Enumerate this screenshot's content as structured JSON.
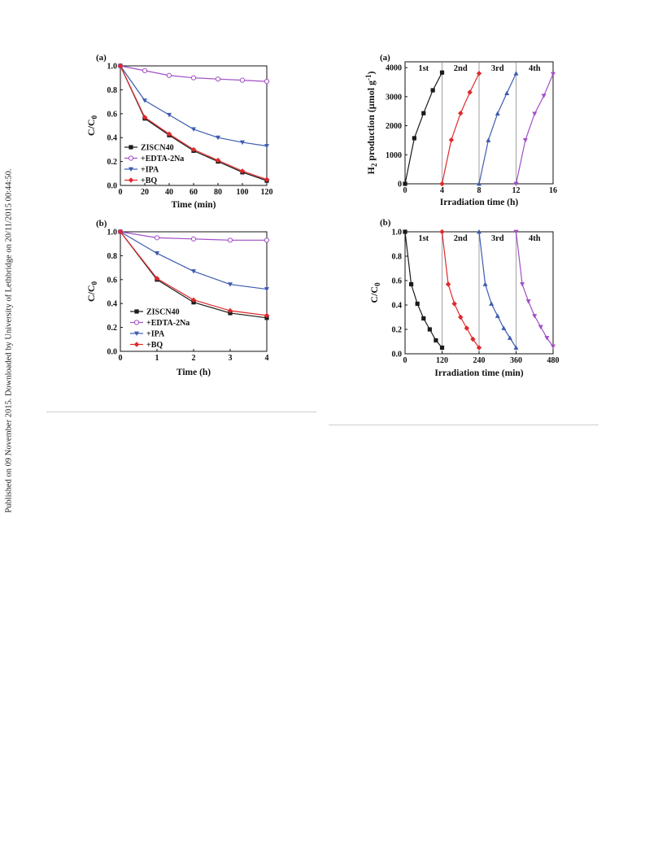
{
  "side_note": "Published on 09 November 2015. Downloaded by University of Lethbridge on 20/11/2015 00:44:50.",
  "chart_data": [
    {
      "id": "fig_left_a",
      "type": "line",
      "panel_label": "(a)",
      "xlabel": "Time (min)",
      "ylabel": "C/C0",
      "xlim": [
        0,
        120
      ],
      "ylim": [
        0,
        1.0
      ],
      "xticks": [
        0,
        20,
        40,
        60,
        80,
        100,
        120
      ],
      "yticks": [
        0.0,
        0.2,
        0.4,
        0.6,
        0.8,
        1.0
      ],
      "grid": false,
      "legend": "bottom-left",
      "x": [
        0,
        20,
        40,
        60,
        80,
        100,
        120
      ],
      "series": [
        {
          "name": "ZISCN40",
          "color": "#1a1a1a",
          "marker": "square",
          "values": [
            1.0,
            0.56,
            0.42,
            0.29,
            0.2,
            0.11,
            0.04
          ]
        },
        {
          "name": "+EDTA-2Na",
          "color": "#a14fc4",
          "marker": "circle-open",
          "values": [
            1.0,
            0.96,
            0.92,
            0.9,
            0.89,
            0.88,
            0.87
          ]
        },
        {
          "name": "+IPA",
          "color": "#3e5bb0",
          "marker": "triangle-down",
          "values": [
            1.0,
            0.71,
            0.59,
            0.47,
            0.4,
            0.36,
            0.33
          ]
        },
        {
          "name": "+BQ",
          "color": "#e0292b",
          "marker": "diamond",
          "values": [
            1.0,
            0.57,
            0.43,
            0.3,
            0.21,
            0.12,
            0.05
          ]
        }
      ]
    },
    {
      "id": "fig_left_b",
      "type": "line",
      "panel_label": "(b)",
      "xlabel": "Time (h)",
      "ylabel": "C/C0",
      "xlim": [
        0,
        4
      ],
      "ylim": [
        0,
        1.0
      ],
      "xticks": [
        0,
        1,
        2,
        3,
        4
      ],
      "yticks": [
        0.0,
        0.2,
        0.4,
        0.6,
        0.8,
        1.0
      ],
      "grid": false,
      "legend": "bottom-left",
      "x": [
        0,
        1,
        2,
        3,
        4
      ],
      "series": [
        {
          "name": "ZISCN40",
          "color": "#1a1a1a",
          "marker": "square",
          "values": [
            1.0,
            0.6,
            0.41,
            0.32,
            0.28
          ]
        },
        {
          "name": "+EDTA-2Na",
          "color": "#a14fc4",
          "marker": "circle-open",
          "values": [
            1.0,
            0.95,
            0.94,
            0.93,
            0.93
          ]
        },
        {
          "name": "+IPA",
          "color": "#3e5bb0",
          "marker": "triangle-down",
          "values": [
            1.0,
            0.82,
            0.67,
            0.56,
            0.52
          ]
        },
        {
          "name": "+BQ",
          "color": "#e0292b",
          "marker": "diamond",
          "values": [
            1.0,
            0.61,
            0.43,
            0.34,
            0.3
          ]
        }
      ]
    },
    {
      "id": "fig_right_a",
      "type": "line",
      "panel_label": "(a)",
      "xlabel": "Irradiation time (h)",
      "ylabel": "H2 production (µmol g-1)",
      "xlim": [
        0,
        16
      ],
      "ylim": [
        0,
        4200
      ],
      "xticks": [
        0,
        4,
        8,
        12,
        16
      ],
      "yticks": [
        0,
        1000,
        2000,
        3000,
        4000
      ],
      "grid": false,
      "cycle_dividers": [
        4,
        8,
        12
      ],
      "cycle_labels": [
        {
          "text": "1st",
          "x": 2
        },
        {
          "text": "2nd",
          "x": 6
        },
        {
          "text": "3rd",
          "x": 10
        },
        {
          "text": "4th",
          "x": 14
        }
      ],
      "series": [
        {
          "name": "1st",
          "color": "#1a1a1a",
          "marker": "square",
          "x": [
            0,
            1,
            2,
            3,
            4
          ],
          "values": [
            0,
            1570,
            2430,
            3220,
            3830
          ]
        },
        {
          "name": "2nd",
          "color": "#e0292b",
          "marker": "diamond",
          "x": [
            4,
            5,
            6,
            7,
            8
          ],
          "values": [
            0,
            1510,
            2430,
            3150,
            3800
          ]
        },
        {
          "name": "3rd",
          "color": "#3e5bb0",
          "marker": "triangle-up",
          "x": [
            8,
            9,
            10,
            11,
            12
          ],
          "values": [
            0,
            1500,
            2420,
            3120,
            3800
          ]
        },
        {
          "name": "4th",
          "color": "#a14fc4",
          "marker": "triangle-down",
          "x": [
            12,
            13,
            14,
            15,
            16
          ],
          "values": [
            0,
            1500,
            2410,
            3030,
            3780
          ]
        }
      ]
    },
    {
      "id": "fig_right_b",
      "type": "line",
      "panel_label": "(b)",
      "xlabel": "Irradiation time (min)",
      "ylabel": "C/C0",
      "xlim": [
        0,
        480
      ],
      "ylim": [
        0,
        1.0
      ],
      "xticks": [
        0,
        120,
        240,
        360,
        480
      ],
      "yticks": [
        0.0,
        0.2,
        0.4,
        0.6,
        0.8,
        1.0
      ],
      "grid": false,
      "cycle_dividers": [
        120,
        240,
        360
      ],
      "cycle_labels": [
        {
          "text": "1st",
          "x": 60
        },
        {
          "text": "2nd",
          "x": 180
        },
        {
          "text": "3rd",
          "x": 300
        },
        {
          "text": "4th",
          "x": 420
        }
      ],
      "series": [
        {
          "name": "1st",
          "color": "#1a1a1a",
          "marker": "square",
          "x": [
            0,
            20,
            40,
            60,
            80,
            100,
            120
          ],
          "values": [
            1.0,
            0.57,
            0.41,
            0.29,
            0.2,
            0.11,
            0.05
          ]
        },
        {
          "name": "2nd",
          "color": "#e0292b",
          "marker": "diamond",
          "x": [
            120,
            140,
            160,
            180,
            200,
            220,
            240
          ],
          "values": [
            1.0,
            0.57,
            0.41,
            0.3,
            0.21,
            0.12,
            0.05
          ]
        },
        {
          "name": "3rd",
          "color": "#3e5bb0",
          "marker": "triangle-up",
          "x": [
            240,
            260,
            280,
            300,
            320,
            340,
            360
          ],
          "values": [
            1.0,
            0.57,
            0.41,
            0.31,
            0.21,
            0.13,
            0.05
          ]
        },
        {
          "name": "4th",
          "color": "#a14fc4",
          "marker": "triangle-down",
          "x": [
            360,
            380,
            400,
            420,
            440,
            460,
            480
          ],
          "values": [
            1.0,
            0.57,
            0.43,
            0.31,
            0.22,
            0.13,
            0.06
          ]
        }
      ]
    }
  ]
}
